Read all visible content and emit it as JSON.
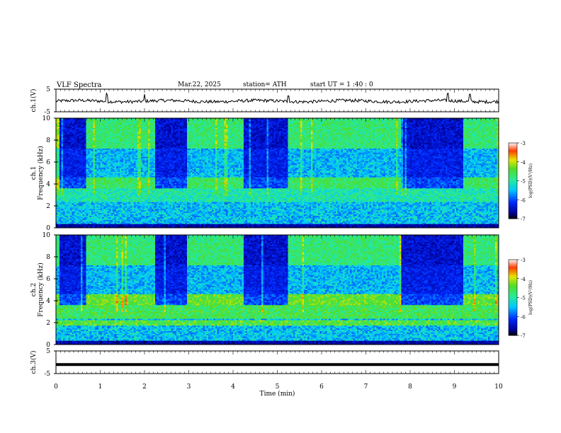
{
  "header": {
    "title": "VLF  Spectra",
    "date": "Mar.22, 2025",
    "station": "station= ATH",
    "start": "start  UT  =   1 :40 : 0"
  },
  "chart_data": [
    {
      "type": "line",
      "panel": "ch1-waveform",
      "ylabel": "ch.1(V)",
      "xlim": [
        0,
        10
      ],
      "ylim": [
        -5,
        5
      ],
      "yticks": [
        "5",
        "-5"
      ],
      "baseline": -0.3,
      "spikes_min": [
        1.15,
        2.0,
        5.25,
        8.85,
        9.35
      ]
    },
    {
      "type": "heatmap",
      "panel": "ch1-spectrogram",
      "ylabel": "ch.1\nFrequency  (kHz)",
      "xlim": [
        0,
        10
      ],
      "ylim": [
        0,
        10
      ],
      "yticks": [
        "0",
        "2",
        "4",
        "6",
        "8",
        "10"
      ],
      "colorbar": {
        "label": "log(PSD)(V²/Hz)",
        "ticks": [
          "-3",
          "-4",
          "-5",
          "-6",
          "-7"
        ],
        "range": [
          -7,
          -3
        ]
      },
      "quiet_intervals_min": [
        [
          0.1,
          0.7
        ],
        [
          2.25,
          2.95
        ],
        [
          4.25,
          5.25
        ],
        [
          7.8,
          9.2
        ]
      ]
    },
    {
      "type": "heatmap",
      "panel": "ch2-spectrogram",
      "ylabel": "ch.2\nFrequency  (kHz)",
      "xlim": [
        0,
        10
      ],
      "ylim": [
        0,
        10
      ],
      "yticks": [
        "0",
        "2",
        "4",
        "6",
        "8",
        "10"
      ],
      "colorbar": {
        "label": "log(PSD)(V²/Hz)",
        "ticks": [
          "-3",
          "-4",
          "-5",
          "-6",
          "-7"
        ],
        "range": [
          -7,
          -3
        ]
      },
      "quiet_intervals_min": [
        [
          0.1,
          0.7
        ],
        [
          2.25,
          2.95
        ],
        [
          4.25,
          5.25
        ],
        [
          7.8,
          9.2
        ]
      ]
    },
    {
      "type": "line",
      "panel": "ch3-waveform",
      "ylabel": "ch.3(V)",
      "xlim": [
        0,
        10
      ],
      "ylim": [
        -5,
        5
      ],
      "yticks": [
        "5",
        "-5"
      ],
      "baseline": -1.0,
      "xlabel": "Time  (min)",
      "xticks": [
        "0",
        "1",
        "2",
        "3",
        "4",
        "5",
        "6",
        "7",
        "8",
        "9",
        "10"
      ]
    }
  ]
}
